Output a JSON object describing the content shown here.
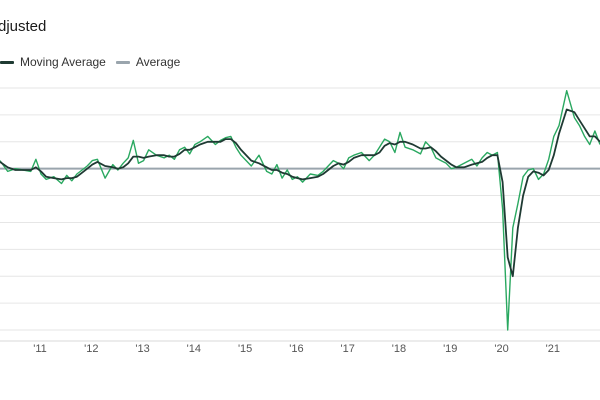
{
  "header": {
    "title": "djusted"
  },
  "legend": {
    "items": [
      {
        "label": "Moving Average",
        "color": "#1f3a33"
      },
      {
        "label": "Average",
        "color": "#9aa5ad"
      }
    ]
  },
  "chart_data": {
    "type": "line",
    "title": "djusted",
    "xlabel": "",
    "ylabel": "",
    "x_ticks": [
      "'11",
      "'12",
      "'13",
      "'14",
      "'15",
      "'16",
      "'17",
      "'18",
      "'19",
      "'20",
      "'21"
    ],
    "x_range": [
      2010.3,
      2022.0
    ],
    "y_range": [
      -6,
      3
    ],
    "grid": true,
    "legend_position": "top-left",
    "average_value": 0,
    "series": [
      {
        "name": "",
        "color": "#2aa860",
        "x": [
          2010.3,
          2010.45,
          2010.6,
          2010.75,
          2010.9,
          2011.0,
          2011.1,
          2011.2,
          2011.35,
          2011.5,
          2011.6,
          2011.7,
          2011.8,
          2011.9,
          2012.0,
          2012.1,
          2012.2,
          2012.35,
          2012.5,
          2012.6,
          2012.7,
          2012.8,
          2012.9,
          2013.0,
          2013.1,
          2013.2,
          2013.35,
          2013.5,
          2013.6,
          2013.7,
          2013.8,
          2013.9,
          2014.0,
          2014.1,
          2014.2,
          2014.35,
          2014.5,
          2014.6,
          2014.7,
          2014.8,
          2014.9,
          2015.0,
          2015.1,
          2015.2,
          2015.35,
          2015.5,
          2015.6,
          2015.7,
          2015.8,
          2015.9,
          2016.0,
          2016.1,
          2016.2,
          2016.35,
          2016.5,
          2016.6,
          2016.7,
          2016.8,
          2016.9,
          2017.0,
          2017.1,
          2017.2,
          2017.35,
          2017.5,
          2017.6,
          2017.7,
          2017.8,
          2017.9,
          2018.0,
          2018.1,
          2018.2,
          2018.35,
          2018.5,
          2018.6,
          2018.7,
          2018.8,
          2018.9,
          2019.0,
          2019.1,
          2019.2,
          2019.35,
          2019.5,
          2019.6,
          2019.7,
          2019.8,
          2019.9,
          2020.0,
          2020.1,
          2020.2,
          2020.3,
          2020.4,
          2020.5,
          2020.6,
          2020.7,
          2020.8,
          2020.9,
          2021.0,
          2021.1,
          2021.2,
          2021.35,
          2021.5,
          2021.6,
          2021.7,
          2021.8,
          2021.9,
          2022.0
        ],
        "y": [
          0.3,
          -0.1,
          0.0,
          -0.05,
          -0.1,
          0.35,
          -0.2,
          -0.4,
          -0.3,
          -0.55,
          -0.25,
          -0.45,
          -0.2,
          -0.05,
          0.1,
          0.3,
          0.35,
          -0.35,
          0.15,
          -0.05,
          0.2,
          0.4,
          1.05,
          0.2,
          0.3,
          0.7,
          0.5,
          0.4,
          0.5,
          0.35,
          0.7,
          0.8,
          0.55,
          0.9,
          1.0,
          1.2,
          0.9,
          1.05,
          1.15,
          1.2,
          0.8,
          0.5,
          0.3,
          0.1,
          0.5,
          -0.1,
          -0.2,
          0.15,
          -0.35,
          -0.05,
          -0.4,
          -0.3,
          -0.5,
          -0.2,
          -0.25,
          -0.1,
          0.1,
          0.3,
          0.2,
          0.0,
          0.4,
          0.5,
          0.6,
          0.3,
          0.5,
          0.8,
          1.1,
          1.0,
          0.6,
          1.35,
          0.8,
          0.7,
          0.55,
          1.0,
          0.8,
          0.4,
          0.3,
          0.2,
          0.0,
          0.05,
          0.2,
          0.35,
          0.1,
          0.4,
          0.6,
          0.5,
          0.6,
          -1.5,
          -6.0,
          -2.2,
          -1.3,
          -0.3,
          -0.05,
          0.0,
          -0.4,
          -0.2,
          0.35,
          1.2,
          1.6,
          2.9,
          1.9,
          1.6,
          1.2,
          0.9,
          1.4,
          0.9
        ]
      },
      {
        "name": "Moving Average",
        "color": "#1f3a33",
        "x": [
          2010.3,
          2010.45,
          2010.6,
          2010.75,
          2010.9,
          2011.0,
          2011.1,
          2011.2,
          2011.35,
          2011.5,
          2011.6,
          2011.7,
          2011.8,
          2011.9,
          2012.0,
          2012.1,
          2012.2,
          2012.35,
          2012.5,
          2012.6,
          2012.7,
          2012.8,
          2012.9,
          2013.0,
          2013.1,
          2013.2,
          2013.35,
          2013.5,
          2013.6,
          2013.7,
          2013.8,
          2013.9,
          2014.0,
          2014.1,
          2014.2,
          2014.35,
          2014.5,
          2014.6,
          2014.7,
          2014.8,
          2014.9,
          2015.0,
          2015.1,
          2015.2,
          2015.35,
          2015.5,
          2015.6,
          2015.7,
          2015.8,
          2015.9,
          2016.0,
          2016.1,
          2016.2,
          2016.35,
          2016.5,
          2016.6,
          2016.7,
          2016.8,
          2016.9,
          2017.0,
          2017.1,
          2017.2,
          2017.35,
          2017.5,
          2017.6,
          2017.7,
          2017.8,
          2017.9,
          2018.0,
          2018.1,
          2018.2,
          2018.35,
          2018.5,
          2018.6,
          2018.7,
          2018.8,
          2018.9,
          2019.0,
          2019.1,
          2019.2,
          2019.35,
          2019.5,
          2019.6,
          2019.7,
          2019.8,
          2019.9,
          2020.0,
          2020.1,
          2020.2,
          2020.3,
          2020.4,
          2020.5,
          2020.6,
          2020.7,
          2020.8,
          2020.9,
          2021.0,
          2021.1,
          2021.2,
          2021.35,
          2021.5,
          2021.6,
          2021.7,
          2021.8,
          2021.9,
          2022.0
        ],
        "y": [
          0.25,
          0.05,
          -0.05,
          -0.05,
          -0.05,
          0.05,
          -0.1,
          -0.3,
          -0.35,
          -0.4,
          -0.35,
          -0.35,
          -0.3,
          -0.15,
          0.0,
          0.15,
          0.25,
          0.1,
          0.05,
          0.0,
          0.05,
          0.2,
          0.45,
          0.45,
          0.4,
          0.45,
          0.5,
          0.5,
          0.45,
          0.45,
          0.55,
          0.7,
          0.7,
          0.8,
          0.9,
          1.0,
          1.0,
          1.0,
          1.1,
          1.1,
          0.95,
          0.7,
          0.5,
          0.3,
          0.2,
          0.05,
          -0.05,
          -0.05,
          -0.15,
          -0.2,
          -0.3,
          -0.35,
          -0.4,
          -0.35,
          -0.3,
          -0.2,
          -0.05,
          0.1,
          0.2,
          0.15,
          0.25,
          0.4,
          0.5,
          0.5,
          0.5,
          0.6,
          0.85,
          0.95,
          0.9,
          1.0,
          1.0,
          0.9,
          0.75,
          0.75,
          0.8,
          0.65,
          0.45,
          0.3,
          0.15,
          0.05,
          0.05,
          0.15,
          0.2,
          0.25,
          0.4,
          0.5,
          0.5,
          -0.5,
          -3.3,
          -4.0,
          -2.2,
          -1.0,
          -0.3,
          -0.1,
          -0.15,
          -0.25,
          -0.05,
          0.5,
          1.3,
          2.2,
          2.1,
          1.8,
          1.5,
          1.2,
          1.2,
          1.0
        ]
      }
    ]
  }
}
